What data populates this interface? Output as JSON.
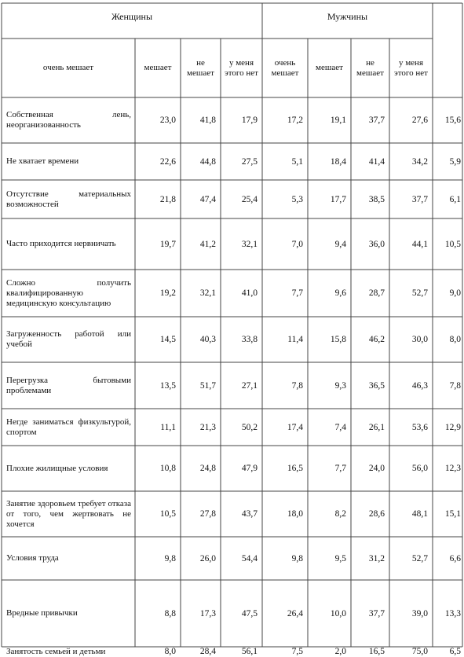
{
  "groups": {
    "women": "Женщины",
    "men": "Мужчины"
  },
  "columns": [
    "очень мешает",
    "мешает",
    "не мешает",
    "у меня этого нет",
    "очень мешает",
    "мешает",
    "не мешает",
    "у меня этого нет"
  ],
  "rows": [
    {
      "label": "Собственная лень, неорганизованность",
      "values": [
        "23,0",
        "41,8",
        "17,9",
        "17,2",
        "19,1",
        "37,7",
        "27,6",
        "15,6"
      ]
    },
    {
      "label": "Не хватает времени",
      "values": [
        "22,6",
        "44,8",
        "27,5",
        "5,1",
        "18,4",
        "41,4",
        "34,2",
        "5,9"
      ]
    },
    {
      "label": "Отсутствие материальных возможностей",
      "values": [
        "21,8",
        "47,4",
        "25,4",
        "5,3",
        "17,7",
        "38,5",
        "37,7",
        "6,1"
      ]
    },
    {
      "label": "Часто приходится нервничать",
      "values": [
        "19,7",
        "41,2",
        "32,1",
        "7,0",
        "9,4",
        "36,0",
        "44,1",
        "10,5"
      ]
    },
    {
      "label": "Сложно получить квалифицированную медицинскую консультацию",
      "values": [
        "19,2",
        "32,1",
        "41,0",
        "7,7",
        "9,6",
        "28,7",
        "52,7",
        "9,0"
      ]
    },
    {
      "label": "Загруженность работой или учебой",
      "values": [
        "14,5",
        "40,3",
        "33,8",
        "11,4",
        "15,8",
        "46,2",
        "30,0",
        "8,0"
      ]
    },
    {
      "label": "Перегрузка бытовыми проблемами",
      "values": [
        "13,5",
        "51,7",
        "27,1",
        "7,8",
        "9,3",
        "36,5",
        "46,3",
        "7,8"
      ]
    },
    {
      "label": "Негде заниматься физкультурой, спортом",
      "values": [
        "11,1",
        "21,3",
        "50,2",
        "17,4",
        "7,4",
        "26,1",
        "53,6",
        "12,9"
      ]
    },
    {
      "label": "Плохие жилищные условия",
      "values": [
        "10,8",
        "24,8",
        "47,9",
        "16,5",
        "7,7",
        "24,0",
        "56,0",
        "12,3"
      ]
    },
    {
      "label": "Занятие здоровьем требует отказа от того, чем жертвовать не хочется",
      "values": [
        "10,5",
        "27,8",
        "43,7",
        "18,0",
        "8,2",
        "28,6",
        "48,1",
        "15,1"
      ]
    },
    {
      "label": "Условия труда",
      "values": [
        "9,8",
        "26,0",
        "54,4",
        "9,8",
        "9,5",
        "31,2",
        "52,7",
        "6,6"
      ]
    },
    {
      "label": "Вредные привычки",
      "values": [
        "8,8",
        "17,3",
        "47,5",
        "26,4",
        "10,0",
        "37,7",
        "39,0",
        "13,3"
      ]
    },
    {
      "label": "Занятость семьей и детьми",
      "values": [
        "8,0",
        "28,4",
        "56,1",
        "7,5",
        "2,0",
        "16,5",
        "75,0",
        "6,5"
      ]
    }
  ]
}
